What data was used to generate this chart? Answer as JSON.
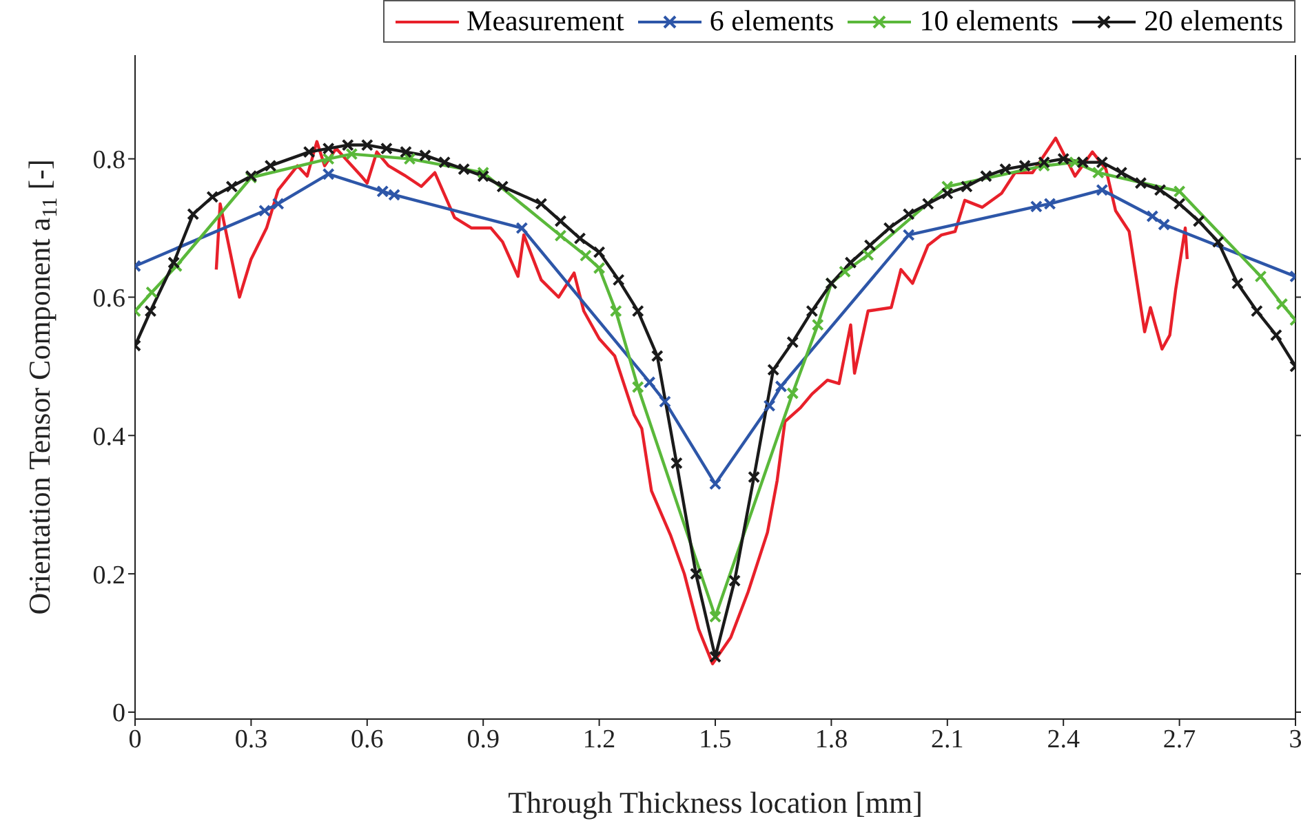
{
  "chart_data": {
    "type": "line",
    "xlabel": "Through Thickness location [mm]",
    "ylabel": "Orientation Tensor Component a$_{11}$ [-]",
    "xlim": [
      0,
      3
    ],
    "xticks": [
      0,
      0.3,
      0.6,
      0.9,
      1.2,
      1.5,
      1.8,
      2.1,
      2.4,
      2.7,
      3
    ],
    "ylim": [
      -0.01,
      0.95
    ],
    "yticks": [
      0,
      0.2,
      0.4,
      0.6,
      0.8
    ],
    "grid": false,
    "legend": "top right",
    "line_style": "solid",
    "series": [
      {
        "name": "Measurement",
        "color": "#e8202a",
        "marker": "none",
        "x": [
          0.21,
          0.22,
          0.27,
          0.3,
          0.34,
          0.37,
          0.42,
          0.445,
          0.47,
          0.49,
          0.52,
          0.585,
          0.6,
          0.625,
          0.655,
          0.7,
          0.74,
          0.775,
          0.826,
          0.87,
          0.92,
          0.95,
          0.99,
          1.005,
          1.05,
          1.095,
          1.135,
          1.16,
          1.2,
          1.24,
          1.29,
          1.31,
          1.335,
          1.385,
          1.42,
          1.457,
          1.493,
          1.54,
          1.585,
          1.635,
          1.66,
          1.68,
          1.72,
          1.75,
          1.79,
          1.82,
          1.85,
          1.86,
          1.895,
          1.955,
          1.98,
          2.01,
          2.05,
          2.085,
          2.12,
          2.145,
          2.19,
          2.24,
          2.275,
          2.32,
          2.38,
          2.43,
          2.475,
          2.51,
          2.535,
          2.57,
          2.61,
          2.625,
          2.655,
          2.675,
          2.69,
          2.715,
          2.72
        ],
        "values": [
          0.64,
          0.735,
          0.6,
          0.655,
          0.7,
          0.755,
          0.79,
          0.775,
          0.825,
          0.79,
          0.815,
          0.775,
          0.765,
          0.81,
          0.79,
          0.775,
          0.76,
          0.78,
          0.715,
          0.7,
          0.7,
          0.68,
          0.63,
          0.69,
          0.625,
          0.6,
          0.635,
          0.58,
          0.54,
          0.515,
          0.43,
          0.41,
          0.32,
          0.255,
          0.2,
          0.12,
          0.07,
          0.108,
          0.174,
          0.26,
          0.335,
          0.42,
          0.44,
          0.46,
          0.48,
          0.475,
          0.56,
          0.49,
          0.58,
          0.585,
          0.64,
          0.62,
          0.675,
          0.69,
          0.695,
          0.74,
          0.73,
          0.75,
          0.78,
          0.78,
          0.83,
          0.775,
          0.81,
          0.785,
          0.725,
          0.695,
          0.55,
          0.585,
          0.525,
          0.545,
          0.61,
          0.7,
          0.655
        ]
      },
      {
        "name": "6 elements",
        "color": "#2d56a8",
        "marker": "cross",
        "x": [
          0,
          0.335,
          0.37,
          0.5,
          0.64,
          0.67,
          1.0,
          1.33,
          1.37,
          1.5,
          1.64,
          1.67,
          2.0,
          2.33,
          2.365,
          2.5,
          2.63,
          2.66,
          3.0
        ],
        "values": [
          0.645,
          0.725,
          0.735,
          0.778,
          0.753,
          0.748,
          0.7,
          0.477,
          0.449,
          0.33,
          0.443,
          0.471,
          0.69,
          0.731,
          0.735,
          0.755,
          0.717,
          0.705,
          0.63
        ]
      },
      {
        "name": "10 elements",
        "color": "#5ab83a",
        "marker": "cross",
        "x": [
          0,
          0.043,
          0.107,
          0.3,
          0.5,
          0.56,
          0.71,
          0.9,
          1.1,
          1.165,
          1.2,
          1.243,
          1.3,
          1.5,
          1.7,
          1.765,
          1.8,
          1.835,
          1.895,
          2.1,
          2.35,
          2.43,
          2.49,
          2.7,
          2.91,
          2.965,
          3.0
        ],
        "values": [
          0.58,
          0.607,
          0.645,
          0.773,
          0.8,
          0.807,
          0.8,
          0.78,
          0.689,
          0.66,
          0.642,
          0.58,
          0.47,
          0.138,
          0.461,
          0.56,
          0.62,
          0.637,
          0.661,
          0.76,
          0.79,
          0.795,
          0.78,
          0.753,
          0.63,
          0.59,
          0.567
        ]
      },
      {
        "name": "20 elements",
        "color": "#1a1a1a",
        "marker": "cross",
        "x": [
          0,
          0.04,
          0.1,
          0.15,
          0.2,
          0.25,
          0.3,
          0.35,
          0.45,
          0.5,
          0.55,
          0.6,
          0.65,
          0.7,
          0.75,
          0.8,
          0.85,
          0.9,
          0.95,
          1.05,
          1.1,
          1.15,
          1.2,
          1.25,
          1.3,
          1.35,
          1.4,
          1.45,
          1.5,
          1.55,
          1.6,
          1.65,
          1.7,
          1.75,
          1.8,
          1.85,
          1.9,
          1.95,
          2.0,
          2.05,
          2.1,
          2.15,
          2.2,
          2.25,
          2.3,
          2.35,
          2.4,
          2.45,
          2.5,
          2.55,
          2.6,
          2.65,
          2.7,
          2.75,
          2.8,
          2.85,
          2.9,
          2.95,
          3.0
        ],
        "values": [
          0.53,
          0.58,
          0.65,
          0.72,
          0.745,
          0.76,
          0.775,
          0.79,
          0.81,
          0.815,
          0.82,
          0.82,
          0.815,
          0.81,
          0.805,
          0.795,
          0.785,
          0.775,
          0.76,
          0.735,
          0.71,
          0.685,
          0.665,
          0.625,
          0.58,
          0.515,
          0.36,
          0.2,
          0.08,
          0.19,
          0.34,
          0.495,
          0.535,
          0.58,
          0.62,
          0.65,
          0.675,
          0.7,
          0.72,
          0.735,
          0.75,
          0.76,
          0.775,
          0.785,
          0.79,
          0.795,
          0.8,
          0.795,
          0.795,
          0.78,
          0.765,
          0.755,
          0.735,
          0.71,
          0.68,
          0.62,
          0.58,
          0.545,
          0.5
        ]
      }
    ]
  }
}
